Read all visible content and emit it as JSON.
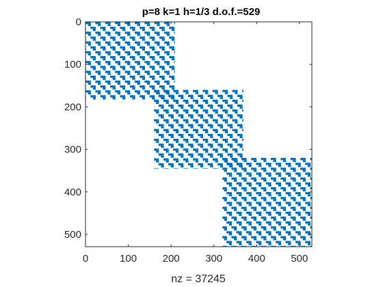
{
  "chart_data": {
    "type": "spy",
    "title": "p=8 k=1 h=1/3 d.o.f.=529",
    "xlabel": "nz = 37245",
    "ylabel": "",
    "matrix_size": 529,
    "nonzeros": 37245,
    "xlim": [
      0,
      529
    ],
    "ylim": [
      0,
      529
    ],
    "y_reversed": true,
    "xticks": [
      0,
      100,
      200,
      300,
      400,
      500
    ],
    "yticks": [
      0,
      100,
      200,
      300,
      400,
      500
    ],
    "grid": false,
    "marker_color": "#0072BD",
    "blocks": [
      {
        "row_range": [
          0,
          184
        ],
        "col_range": [
          0,
          209
        ]
      },
      {
        "row_range": [
          160,
          345
        ],
        "col_range": [
          160,
          369
        ]
      },
      {
        "row_range": [
          320,
          529
        ],
        "col_range": [
          320,
          529
        ]
      }
    ],
    "stripe_period": 23
  }
}
